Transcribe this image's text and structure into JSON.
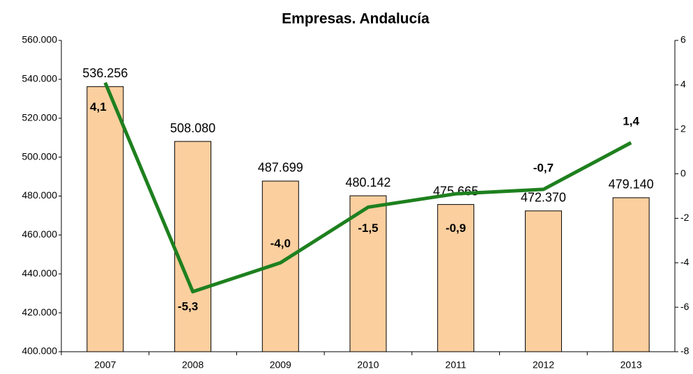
{
  "chart_data": {
    "type": "bar",
    "title": "Empresas. Andalucía",
    "categories": [
      "2007",
      "2008",
      "2009",
      "2010",
      "2011",
      "2012",
      "2013"
    ],
    "series": [
      {
        "type": "bar",
        "color": "#fccf9f",
        "values": [
          536256,
          508080,
          487699,
          480142,
          475665,
          472370,
          479140
        ],
        "value_labels": [
          "536.256",
          "508.080",
          "487.699",
          "480.142",
          "475.665",
          "472.370",
          "479.140"
        ]
      },
      {
        "type": "line",
        "axis": "y2",
        "color": "#1e801e",
        "values": [
          4.1,
          -5.3,
          -4.0,
          -1.5,
          -0.9,
          -0.7,
          1.4
        ],
        "value_labels": [
          "4,1",
          "-5,3",
          "-4,0",
          "-1,5",
          "-0,9",
          "-0,7",
          "1,4"
        ]
      }
    ],
    "ylim": [
      400000,
      560000
    ],
    "yticks": [
      {
        "value": 400000,
        "label": "400.000"
      },
      {
        "value": 420000,
        "label": "420.000"
      },
      {
        "value": 440000,
        "label": "440.000"
      },
      {
        "value": 460000,
        "label": "460.000"
      },
      {
        "value": 480000,
        "label": "480.000"
      },
      {
        "value": 500000,
        "label": "500.000"
      },
      {
        "value": 520000,
        "label": "520.000"
      },
      {
        "value": 540000,
        "label": "540.000"
      },
      {
        "value": 560000,
        "label": "560.000"
      }
    ],
    "y2lim": [
      -8,
      6
    ],
    "y2ticks": [
      -8,
      -6,
      -4,
      -2,
      0,
      2,
      4,
      6
    ]
  }
}
